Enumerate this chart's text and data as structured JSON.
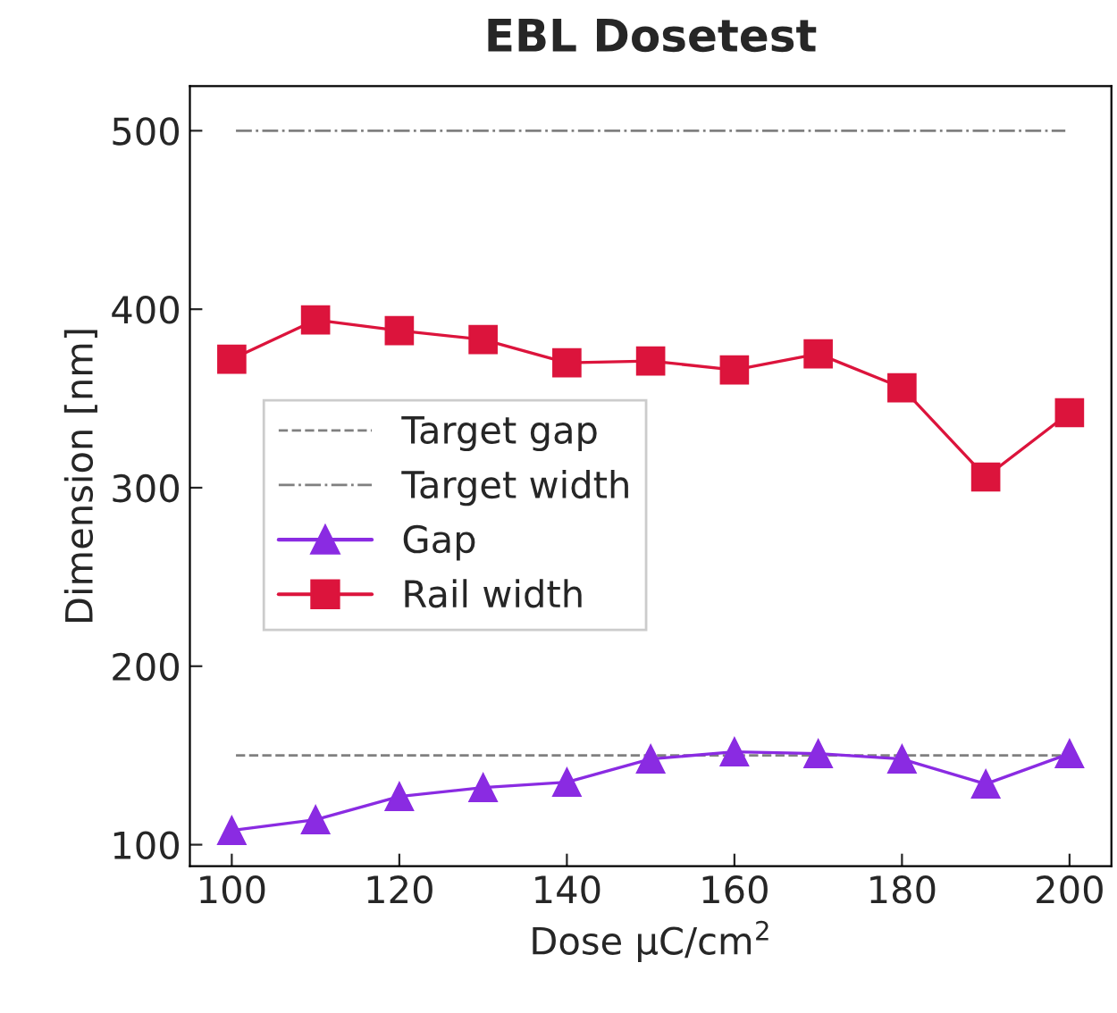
{
  "chart_data": {
    "type": "line",
    "title": "EBL Dosetest",
    "xlabel": "Dose μC/cm$^{2}$",
    "ylabel": "Dimension [nm]",
    "x": [
      100,
      110,
      120,
      130,
      140,
      150,
      160,
      170,
      180,
      190,
      200
    ],
    "series": [
      {
        "name": "Gap",
        "color": "#8a2be2",
        "marker": "triangle",
        "values": [
          108,
          114,
          127,
          132,
          135,
          148,
          152,
          151,
          148,
          134,
          151
        ]
      },
      {
        "name": "Rail width",
        "color": "#dc143c",
        "marker": "square",
        "values": [
          372,
          394,
          388,
          383,
          370,
          371,
          366,
          375,
          356,
          306,
          342
        ]
      }
    ],
    "ref_lines": [
      {
        "axis": "y",
        "value": 150,
        "label": "Target gap",
        "color": "#808080",
        "line_style": "dashed"
      },
      {
        "axis": "y",
        "value": 500,
        "label": "Target width",
        "color": "#808080",
        "line_style": "dashdot"
      }
    ],
    "xlim": [
      95,
      205
    ],
    "ylim": [
      88,
      525
    ],
    "xticks": [
      100,
      120,
      140,
      160,
      180,
      200
    ],
    "yticks": [
      100,
      200,
      300,
      400,
      500
    ],
    "grid": false,
    "legend": "center left",
    "line_style": "solid"
  }
}
